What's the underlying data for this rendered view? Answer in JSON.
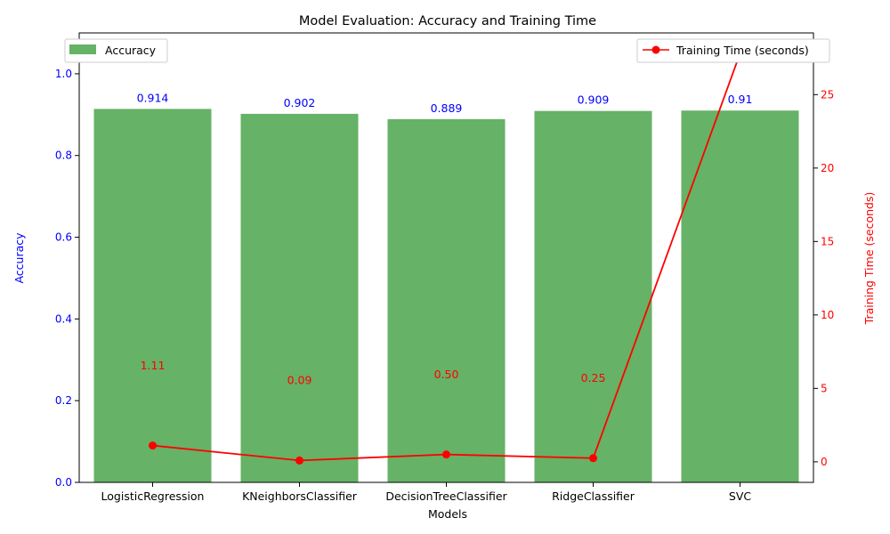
{
  "chart_data": {
    "type": "bar",
    "title": "Model Evaluation: Accuracy and Training Time",
    "xlabel": "Models",
    "ylabel": "Accuracy",
    "y2label": "Training Time (seconds)",
    "categories": [
      "LogisticRegression",
      "KNeighborsClassifier",
      "DecisionTreeClassifier",
      "RidgeClassifier",
      "SVC"
    ],
    "series": [
      {
        "name": "Accuracy",
        "kind": "bar",
        "axis": "left",
        "color": "#66b266",
        "values": [
          0.914,
          0.902,
          0.889,
          0.909,
          0.91
        ],
        "labels": [
          "0.914",
          "0.902",
          "0.889",
          "0.909",
          "0.91"
        ],
        "label_color": "#0000ff"
      },
      {
        "name": "Training Time (seconds)",
        "kind": "line",
        "axis": "right",
        "color": "#ff0000",
        "values": [
          1.11,
          0.09,
          0.5,
          0.25,
          27.8
        ],
        "labels": [
          "1.11",
          "0.09",
          "0.50",
          "0.25",
          ""
        ],
        "label_color": "#ff0000"
      }
    ],
    "ylim": [
      0,
      1.1
    ],
    "yticks": [
      "0.0",
      "0.2",
      "0.4",
      "0.6",
      "0.8",
      "1.0"
    ],
    "y2lim": [
      -1.4,
      29.2
    ],
    "y2ticks": [
      "0",
      "5",
      "10",
      "15",
      "20",
      "25"
    ],
    "legend": {
      "left": "upper-left",
      "right": "upper-right"
    },
    "grid": false
  }
}
